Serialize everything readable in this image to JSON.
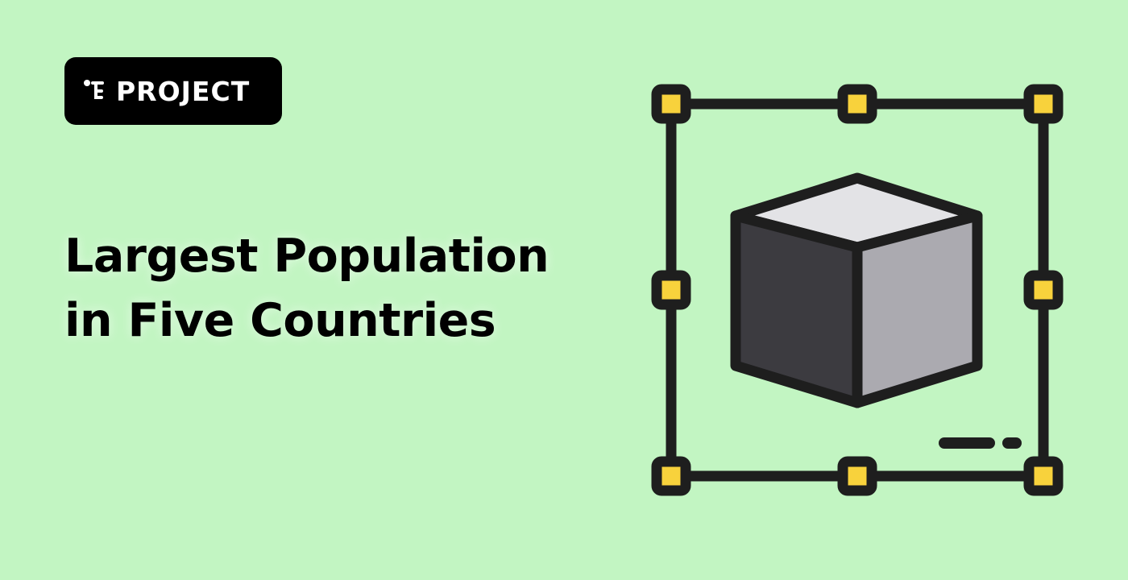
{
  "badge": {
    "label": "PROJECT",
    "icon": "project-tree-icon"
  },
  "headline": {
    "line1": "Largest Population",
    "line2": "in Five Countries"
  },
  "illustration": {
    "icon": "3d-cube-selection-icon"
  },
  "colors": {
    "background": "#c2f5c2",
    "badge_background": "#000000",
    "badge_text": "#ffffff",
    "headline_text": "#000000",
    "outline": "#1e1e1e",
    "handle_fill": "#f8d23c",
    "cube_top": "#e3e3e6",
    "cube_left": "#3c3b40",
    "cube_right": "#abaab0"
  }
}
